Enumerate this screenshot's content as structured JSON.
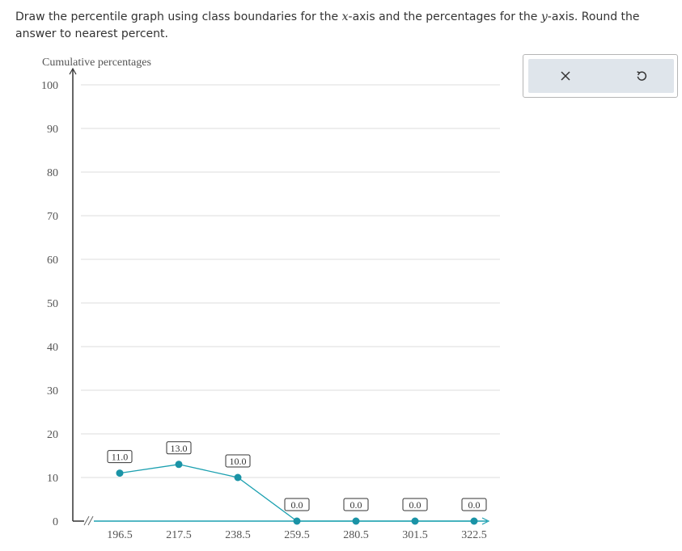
{
  "instructions": {
    "part1": "Draw the percentile graph using class boundaries for the ",
    "x_var": "x",
    "part2": "-axis and the percentages for the ",
    "y_var": "y",
    "part3": "-axis. Round the answer to nearest percent."
  },
  "toolbar": {
    "clear_icon": "close-icon",
    "undo_icon": "undo-icon"
  },
  "colors": {
    "line": "#1ba0b0",
    "point": "#1a93a6",
    "grid": "#dddddd",
    "axis": "#1ba0b0",
    "axis_black": "#333333"
  },
  "chart_data": {
    "type": "line",
    "ylabel": "Cumulative percentages",
    "xlabel": "",
    "ylim": [
      0,
      100
    ],
    "y_ticks": [
      0,
      10,
      20,
      30,
      40,
      50,
      60,
      70,
      80,
      90,
      100
    ],
    "x": [
      196.5,
      217.5,
      238.5,
      259.5,
      280.5,
      301.5,
      322.5
    ],
    "x_tick_labels": [
      "196.5",
      "217.5",
      "238.5",
      "259.5",
      "280.5",
      "301.5",
      "322.5"
    ],
    "values": [
      11.0,
      13.0,
      10.0,
      0.0,
      0.0,
      0.0,
      0.0
    ],
    "value_labels": [
      "11.0",
      "13.0",
      "10.0",
      "0.0",
      "0.0",
      "0.0",
      "0.0"
    ],
    "axis_break": true,
    "grid": true
  }
}
